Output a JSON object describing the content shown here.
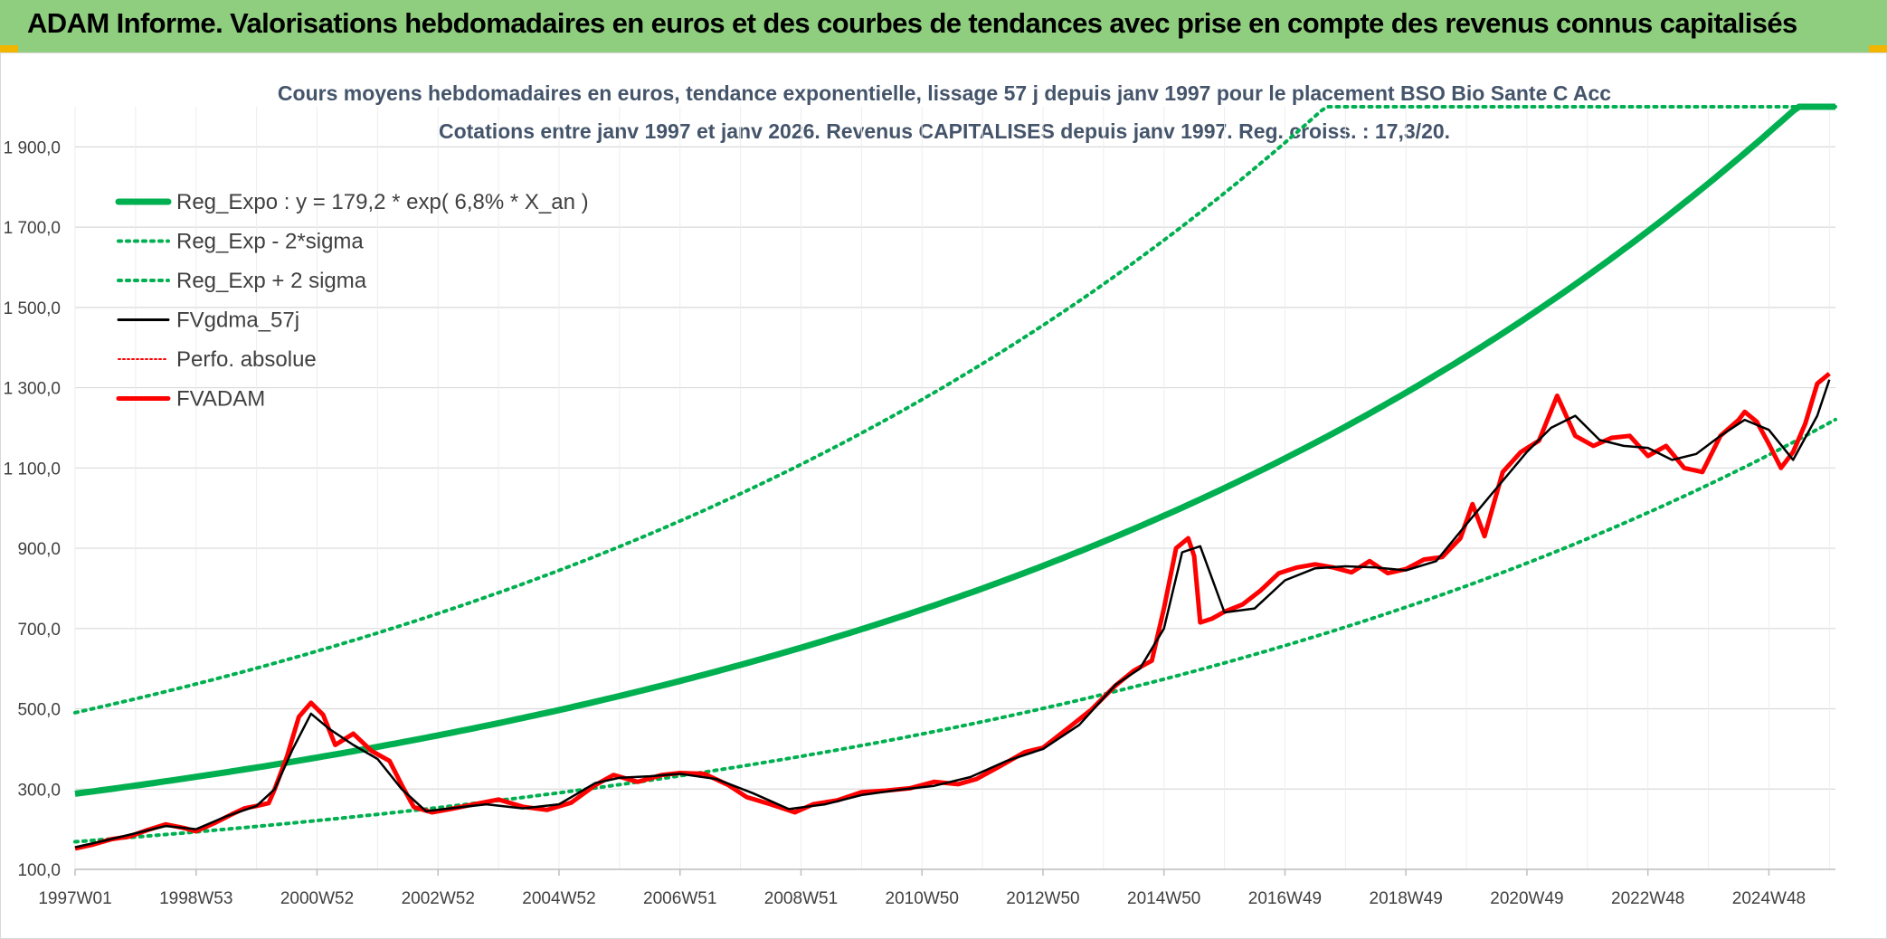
{
  "header": {
    "title": "ADAM Informe. Valorisations hebdomadaires en euros et des courbes de tendances avec prise en compte des revenus connus capitalisés"
  },
  "chart_data": {
    "type": "line",
    "title_line1": "Cours moyens hebdomadaires en euros, tendance exponentielle, lissage 57 j depuis janv 1997 pour le placement BSO Bio Sante C Acc",
    "title_line2": "Cotations entre janv 1997 et janv 2026. Revenus CAPITALISES depuis janv 1997. Reg. croiss. : 17,3/20.",
    "ylim": [
      100,
      2000
    ],
    "xlim": [
      1997.0,
      2026.1
    ],
    "y_ticks": [
      "100,0",
      "300,0",
      "500,0",
      "700,0",
      "900,0",
      "1 100,0",
      "1 300,0",
      "1 500,0",
      "1 700,0",
      "1 900,0"
    ],
    "y_tick_values": [
      100,
      300,
      500,
      700,
      900,
      1100,
      1300,
      1500,
      1700,
      1900
    ],
    "x_ticks": [
      "1997W01",
      "1998W53",
      "2000W52",
      "2002W52",
      "2004W52",
      "2006W51",
      "2008W51",
      "2010W50",
      "2012W50",
      "2014W50",
      "2016W49",
      "2018W49",
      "2020W49",
      "2022W48",
      "2024W48"
    ],
    "x_tick_values": [
      1997.0,
      1999.0,
      2001.0,
      2003.0,
      2005.0,
      2007.0,
      2009.0,
      2011.0,
      2013.0,
      2015.0,
      2017.0,
      2019.0,
      2021.0,
      2023.0,
      2025.0
    ],
    "legend": [
      "Reg_Expo : y = 179,2 * exp( 6,8% *  X_an )",
      "Reg_Exp - 2*sigma",
      "Reg_Exp + 2 sigma",
      "FVgdma_57j",
      "Perfo. absolue",
      "FVADAM"
    ],
    "regression": {
      "a": 179.2,
      "rate": 0.068,
      "lower_factor": 0.585,
      "upper_factor": 1.7,
      "cap": 2000
    },
    "series": [
      {
        "name": "FVADAM",
        "color": "#ff0000",
        "x": [
          1997.0,
          1997.3,
          1997.6,
          1997.9,
          1998.2,
          1998.5,
          1998.8,
          1999.0,
          1999.3,
          1999.6,
          1999.8,
          2000.0,
          2000.2,
          2000.3,
          2000.5,
          2000.7,
          2000.9,
          2001.1,
          2001.3,
          2001.6,
          2001.9,
          2002.2,
          2002.4,
          2002.6,
          2002.9,
          2003.2,
          2003.6,
          2004.0,
          2004.4,
          2004.8,
          2005.2,
          2005.6,
          2005.9,
          2006.3,
          2006.7,
          2007.0,
          2007.4,
          2007.8,
          2008.1,
          2008.5,
          2008.9,
          2009.2,
          2009.6,
          2010.0,
          2010.4,
          2010.8,
          2011.2,
          2011.6,
          2011.9,
          2012.3,
          2012.7,
          2013.0,
          2013.4,
          2013.8,
          2014.2,
          2014.5,
          2014.8,
          2015.0,
          2015.2,
          2015.4,
          2015.5,
          2015.6,
          2015.8,
          2016.0,
          2016.3,
          2016.6,
          2016.9,
          2017.2,
          2017.5,
          2017.8,
          2018.1,
          2018.4,
          2018.7,
          2019.0,
          2019.3,
          2019.6,
          2019.9,
          2020.1,
          2020.3,
          2020.6,
          2020.9,
          2021.2,
          2021.5,
          2021.8,
          2022.1,
          2022.4,
          2022.7,
          2023.0,
          2023.3,
          2023.6,
          2023.9,
          2024.2,
          2024.5,
          2024.6,
          2024.8,
          2025.0,
          2025.2,
          2025.4,
          2025.6,
          2025.8,
          2026.0
        ],
        "values": [
          152,
          162,
          175,
          182,
          198,
          212,
          203,
          195,
          215,
          238,
          252,
          258,
          265,
          300,
          380,
          480,
          515,
          485,
          410,
          438,
          395,
          370,
          310,
          255,
          242,
          250,
          262,
          274,
          256,
          248,
          266,
          310,
          335,
          318,
          335,
          340,
          338,
          310,
          280,
          262,
          242,
          262,
          272,
          292,
          296,
          302,
          318,
          312,
          325,
          358,
          392,
          403,
          450,
          498,
          558,
          595,
          620,
          750,
          900,
          925,
          880,
          715,
          725,
          742,
          760,
          795,
          838,
          852,
          860,
          852,
          840,
          868,
          838,
          848,
          872,
          878,
          925,
          1010,
          930,
          1090,
          1140,
          1168,
          1280,
          1180,
          1155,
          1175,
          1180,
          1130,
          1155,
          1100,
          1090,
          1180,
          1220,
          1240,
          1215,
          1160,
          1100,
          1140,
          1210,
          1310,
          1335
        ]
      },
      {
        "name": "FVgdma_57j",
        "color": "#000000",
        "x": [
          1997.0,
          1997.5,
          1998.0,
          1998.5,
          1999.0,
          1999.5,
          2000.0,
          2000.3,
          2000.6,
          2000.9,
          2001.2,
          2001.6,
          2002.0,
          2002.4,
          2002.8,
          2003.2,
          2003.8,
          2004.4,
          2005.0,
          2005.6,
          2006.0,
          2006.5,
          2007.0,
          2007.6,
          2008.2,
          2008.8,
          2009.4,
          2010.0,
          2010.6,
          2011.2,
          2011.8,
          2012.4,
          2013.0,
          2013.6,
          2014.2,
          2014.6,
          2015.0,
          2015.3,
          2015.6,
          2016.0,
          2016.5,
          2017.0,
          2017.5,
          2018.0,
          2018.5,
          2019.0,
          2019.5,
          2020.0,
          2020.5,
          2021.0,
          2021.4,
          2021.8,
          2022.2,
          2022.6,
          2023.0,
          2023.4,
          2023.8,
          2024.2,
          2024.6,
          2025.0,
          2025.4,
          2025.8,
          2026.0
        ],
        "values": [
          155,
          172,
          190,
          208,
          200,
          232,
          258,
          300,
          400,
          488,
          450,
          410,
          375,
          300,
          245,
          252,
          262,
          252,
          262,
          315,
          328,
          332,
          338,
          325,
          290,
          250,
          262,
          285,
          298,
          308,
          330,
          370,
          400,
          460,
          560,
          600,
          700,
          890,
          905,
          740,
          750,
          820,
          850,
          855,
          852,
          845,
          868,
          960,
          1050,
          1140,
          1200,
          1230,
          1170,
          1155,
          1150,
          1120,
          1135,
          1180,
          1220,
          1195,
          1120,
          1230,
          1320
        ]
      }
    ]
  }
}
